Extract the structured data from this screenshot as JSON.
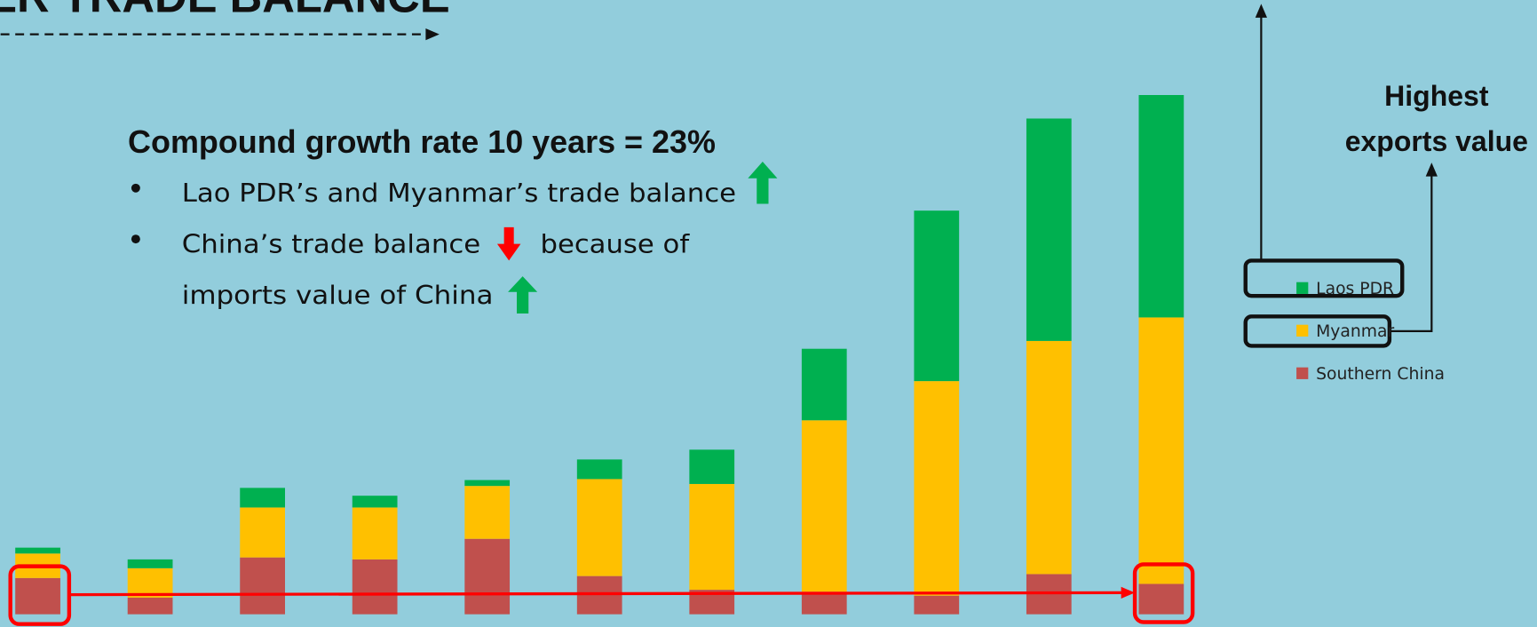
{
  "title": "ER TRADE BALANCE",
  "headline": "Compound growth rate 10 years = 23%",
  "bullets": [
    "Lao PDR’s and Myanmar’s trade balance",
    "China’s trade balance",
    "because of",
    "imports value of China"
  ],
  "chart_data": {
    "type": "bar",
    "stacked": true,
    "annotation": [
      "Highest",
      "exports value"
    ],
    "categories": [
      null,
      null,
      null,
      null,
      null,
      null,
      null,
      null,
      null,
      null,
      null
    ],
    "ylim": [
      0,
      530
    ],
    "series": [
      {
        "name": "Southern China",
        "color": "#c0504d",
        "values": [
          37,
          17,
          58,
          56,
          77,
          39,
          25,
          23,
          19,
          41,
          31
        ]
      },
      {
        "name": "Myanmar",
        "color": "#ffc000",
        "values": [
          25,
          30,
          51,
          53,
          54,
          99,
          108,
          175,
          219,
          238,
          272
        ]
      },
      {
        "name": "Laos PDR",
        "color": "#00b050",
        "values": [
          6,
          9,
          20,
          12,
          6,
          20,
          35,
          73,
          174,
          227,
          227
        ]
      }
    ]
  }
}
